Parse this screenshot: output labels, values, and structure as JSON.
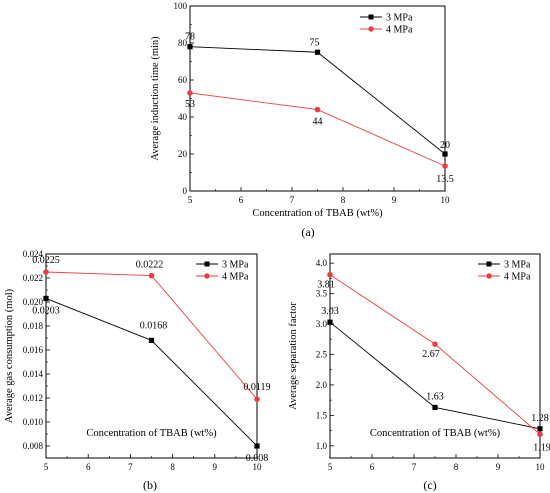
{
  "chart_data": [
    {
      "id": "a",
      "type": "line",
      "caption": "(a)",
      "xlabel": "Concentration of TBAB (wt%)",
      "ylabel": "Average induction time (min)",
      "xlim": [
        5,
        10
      ],
      "ylim": [
        0,
        100
      ],
      "xticks": [
        "5",
        "6",
        "7",
        "8",
        "9",
        "10"
      ],
      "yticks": [
        "0",
        "20",
        "40",
        "60",
        "80",
        "100"
      ],
      "legend_position": "top-right",
      "series": [
        {
          "name": "3 MPa",
          "color": "#000000",
          "marker": "square",
          "x": [
            5,
            7.5,
            10
          ],
          "y": [
            78,
            75,
            20
          ],
          "labels": [
            "78",
            "75",
            "20"
          ]
        },
        {
          "name": "4 MPa",
          "color": "#e8403f",
          "marker": "circle",
          "x": [
            5,
            7.5,
            10
          ],
          "y": [
            53,
            44,
            13.5
          ],
          "labels": [
            "53",
            "44",
            "13.5"
          ]
        }
      ]
    },
    {
      "id": "b",
      "type": "line",
      "caption": "(b)",
      "xlabel": "Concentration of TBAB (wt%)",
      "ylabel": "Average gas consumption (mol)",
      "xlim": [
        5,
        10
      ],
      "ylim": [
        0.007,
        0.024
      ],
      "xticks": [
        "5",
        "6",
        "7",
        "8",
        "9",
        "10"
      ],
      "yticks": [
        "0.008",
        "0.010",
        "0.012",
        "0.014",
        "0.016",
        "0.018",
        "0.020",
        "0.022",
        "0.024"
      ],
      "legend_position": "top-right",
      "series": [
        {
          "name": "3 MPa",
          "color": "#000000",
          "marker": "square",
          "x": [
            5,
            7.5,
            10
          ],
          "y": [
            0.0203,
            0.0168,
            0.008
          ],
          "labels": [
            "0.0203",
            "0.0168",
            "0.008"
          ]
        },
        {
          "name": "4 MPa",
          "color": "#e8403f",
          "marker": "circle",
          "x": [
            5,
            7.5,
            10
          ],
          "y": [
            0.0225,
            0.0222,
            0.0119
          ],
          "labels": [
            "0.0225",
            "0.0222",
            "0.0119"
          ]
        }
      ]
    },
    {
      "id": "c",
      "type": "line",
      "caption": "(c)",
      "xlabel": "Concentration of TBAB (wt%)",
      "ylabel": "Average separation factor",
      "xlim": [
        5,
        10
      ],
      "ylim": [
        0.8,
        4.15
      ],
      "xticks": [
        "5",
        "6",
        "7",
        "8",
        "9",
        "10"
      ],
      "yticks": [
        "1.0",
        "1.5",
        "2.0",
        "2.5",
        "3.0",
        "3.5",
        "4.0"
      ],
      "legend_position": "top-right",
      "series": [
        {
          "name": "3 MPa",
          "color": "#000000",
          "marker": "square",
          "x": [
            5,
            7.5,
            10
          ],
          "y": [
            3.03,
            1.63,
            1.28
          ],
          "labels": [
            "3.03",
            "1.63",
            "1.28"
          ]
        },
        {
          "name": "4 MPa",
          "color": "#e8403f",
          "marker": "circle",
          "x": [
            5,
            7.5,
            10
          ],
          "y": [
            3.81,
            2.67,
            1.19
          ],
          "labels": [
            "3.81",
            "2.67",
            "1.19"
          ]
        }
      ]
    }
  ]
}
